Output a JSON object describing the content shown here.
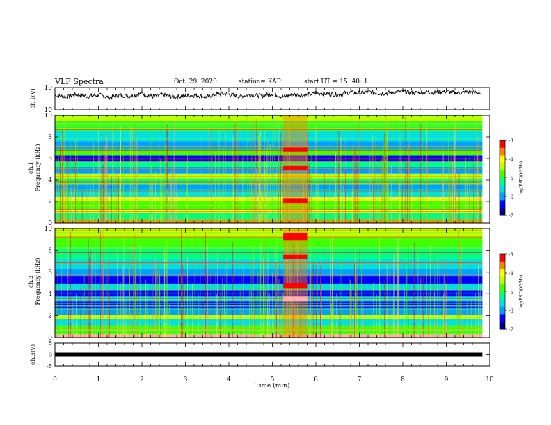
{
  "header": {
    "title": "VLF Spectra",
    "date": "Oct. 29, 2020",
    "station": "station= KAP",
    "start": "start  UT  =   15: 40: 1"
  },
  "colors": {
    "colormap": [
      "#00008b",
      "#0000ff",
      "#00a0ff",
      "#00e0e0",
      "#00ff80",
      "#40ff00",
      "#c0ff00",
      "#ffff00",
      "#ff8000",
      "#ff0000",
      "#ffb0b0"
    ]
  },
  "chart_data": [
    {
      "type": "line",
      "name": "ch1-waveform",
      "ylabel": "ch.1(V)",
      "ylim": [
        -10,
        10
      ],
      "yticks": [
        "10",
        "-10"
      ],
      "xlim": [
        0,
        10
      ],
      "x": [
        0.0,
        0.25,
        0.5,
        0.75,
        1.0,
        1.25,
        1.5,
        1.75,
        2.0,
        2.25,
        2.5,
        2.75,
        3.0,
        3.25,
        3.5,
        3.75,
        4.0,
        4.25,
        4.5,
        4.75,
        5.0,
        5.25,
        5.5,
        5.75,
        6.0,
        6.25,
        6.5,
        6.75,
        7.0,
        7.25,
        7.5,
        7.75,
        8.0,
        8.25,
        8.5,
        8.75,
        9.0,
        9.25,
        9.5,
        9.8
      ],
      "y": [
        3.0,
        1.5,
        4.0,
        2.0,
        3.5,
        1.0,
        3.0,
        2.5,
        4.5,
        2.0,
        3.5,
        1.5,
        2.5,
        3.0,
        1.5,
        4.5,
        4.0,
        2.0,
        3.5,
        2.5,
        4.5,
        1.5,
        4.0,
        3.0,
        5.0,
        4.5,
        3.5,
        5.5,
        5.0,
        6.0,
        4.5,
        5.5,
        6.5,
        5.0,
        6.0,
        5.5,
        6.5,
        5.0,
        6.0,
        5.0
      ]
    },
    {
      "type": "heatmap",
      "name": "ch1-spectrogram",
      "ylabel_channel": "ch.1",
      "ylabel": "Frequency (kHz)",
      "ylim": [
        0,
        10
      ],
      "yticks": [
        "0",
        "2",
        "4",
        "6",
        "8",
        "10"
      ],
      "xlim": [
        0,
        10
      ],
      "data_extent_x": [
        0,
        9.83
      ],
      "colorbar": {
        "label": "log(PSD)(V²/Hz)",
        "range": [
          -7,
          -3
        ],
        "ticks": [
          "-3",
          "-4",
          "-5",
          "-6",
          "-7"
        ]
      },
      "bands": [
        {
          "f": [
            0,
            0.3
          ],
          "color": "#ff8000"
        },
        {
          "f": [
            0.3,
            0.9
          ],
          "color": "#00ff80"
        },
        {
          "f": [
            0.9,
            1.2
          ],
          "color": "#ffff00"
        },
        {
          "f": [
            1.2,
            2.0
          ],
          "color": "#40ff00"
        },
        {
          "f": [
            2.0,
            2.4
          ],
          "color": "#ffff00"
        },
        {
          "f": [
            2.4,
            2.9
          ],
          "color": "#00e0e0"
        },
        {
          "f": [
            2.9,
            3.6
          ],
          "color": "#00a0ff"
        },
        {
          "f": [
            3.6,
            4.1
          ],
          "color": "#00ff80"
        },
        {
          "f": [
            4.1,
            4.6
          ],
          "color": "#c0ff00"
        },
        {
          "f": [
            4.6,
            5.2
          ],
          "color": "#00a0ff"
        },
        {
          "f": [
            5.2,
            5.7
          ],
          "color": "#00ff80"
        },
        {
          "f": [
            5.7,
            6.3
          ],
          "color": "#0000ff"
        },
        {
          "f": [
            6.3,
            6.8
          ],
          "color": "#40ff00"
        },
        {
          "f": [
            6.8,
            7.6
          ],
          "color": "#00a0ff"
        },
        {
          "f": [
            7.6,
            8.6
          ],
          "color": "#00e0e0"
        },
        {
          "f": [
            8.6,
            9.5
          ],
          "color": "#40ff00"
        },
        {
          "f": [
            9.5,
            10.0
          ],
          "color": "#c0ff00"
        }
      ],
      "event": {
        "t": [
          5.25,
          5.8
        ],
        "color": "#ff8000",
        "highlights": [
          {
            "f": [
              4.9,
              5.3
            ],
            "color": "#ff0000"
          },
          {
            "f": [
              6.6,
              7.0
            ],
            "color": "#ff0000"
          },
          {
            "f": [
              1.8,
              2.3
            ],
            "color": "#ff0000"
          }
        ]
      }
    },
    {
      "type": "heatmap",
      "name": "ch2-spectrogram",
      "ylabel_channel": "ch.2",
      "ylabel": "Frequency (kHz)",
      "ylim": [
        0,
        10
      ],
      "yticks": [
        "0",
        "2",
        "4",
        "6",
        "8",
        "10"
      ],
      "xlim": [
        0,
        10
      ],
      "data_extent_x": [
        0,
        9.83
      ],
      "colorbar": {
        "label": "log(PSD)(V²/Hz)",
        "range": [
          -7,
          -3
        ],
        "ticks": [
          "-3",
          "-4",
          "-5",
          "-6",
          "-7"
        ]
      },
      "bands": [
        {
          "f": [
            0,
            0.3
          ],
          "color": "#ffb0b0"
        },
        {
          "f": [
            0.3,
            1.1
          ],
          "color": "#40ff00"
        },
        {
          "f": [
            1.1,
            1.7
          ],
          "color": "#00e0e0"
        },
        {
          "f": [
            1.7,
            2.1
          ],
          "color": "#c0ff00"
        },
        {
          "f": [
            2.1,
            2.7
          ],
          "color": "#00a0ff"
        },
        {
          "f": [
            2.7,
            3.3
          ],
          "color": "#0000ff"
        },
        {
          "f": [
            3.3,
            3.8
          ],
          "color": "#00e0e0"
        },
        {
          "f": [
            3.8,
            4.3
          ],
          "color": "#0000ff"
        },
        {
          "f": [
            4.3,
            4.9
          ],
          "color": "#00e0e0"
        },
        {
          "f": [
            4.9,
            5.6
          ],
          "color": "#0000ff"
        },
        {
          "f": [
            5.6,
            6.3
          ],
          "color": "#00a0ff"
        },
        {
          "f": [
            6.3,
            7.2
          ],
          "color": "#00e0e0"
        },
        {
          "f": [
            7.2,
            8.3
          ],
          "color": "#00ff80"
        },
        {
          "f": [
            8.3,
            9.2
          ],
          "color": "#40ff00"
        },
        {
          "f": [
            9.2,
            10.0
          ],
          "color": "#c0ff00"
        }
      ],
      "event": {
        "t": [
          5.25,
          5.8
        ],
        "color": "#ff8000",
        "highlights": [
          {
            "f": [
              8.9,
              9.6
            ],
            "color": "#ff0000"
          },
          {
            "f": [
              7.2,
              7.6
            ],
            "color": "#ff0000"
          },
          {
            "f": [
              4.5,
              5.0
            ],
            "color": "#ff0000"
          },
          {
            "f": [
              3.3,
              3.8
            ],
            "color": "#ffb0b0"
          }
        ]
      }
    },
    {
      "type": "line",
      "name": "ch3-trace",
      "ylabel": "ch.3(V)",
      "ylim": [
        -5,
        5
      ],
      "yticks": [
        "5",
        "0",
        "-5"
      ],
      "xlim": [
        0,
        10
      ],
      "xlabel": "Time  (min)",
      "xticks": [
        "0",
        "1",
        "2",
        "3",
        "4",
        "5",
        "6",
        "7",
        "8",
        "9",
        "10"
      ],
      "x": [
        0,
        9.83
      ],
      "y": [
        0,
        0
      ]
    }
  ]
}
